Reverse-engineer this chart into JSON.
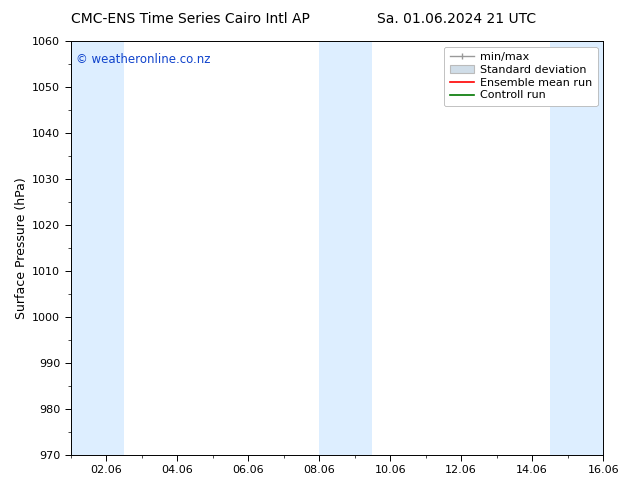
{
  "title": "CMC-ENS Time Series Cairo Intl AP",
  "title_date": "Sa. 01.06.2024 21 UTC",
  "ylabel": "Surface Pressure (hPa)",
  "ylim": [
    970,
    1060
  ],
  "yticks": [
    970,
    980,
    990,
    1000,
    1010,
    1020,
    1030,
    1040,
    1050,
    1060
  ],
  "xlim_days": [
    1.0,
    16.0
  ],
  "xtick_labels": [
    "02.06",
    "04.06",
    "06.06",
    "08.06",
    "10.06",
    "12.06",
    "14.06",
    "16.06"
  ],
  "xtick_positions": [
    2,
    4,
    6,
    8,
    10,
    12,
    14,
    16
  ],
  "shade_bands": [
    {
      "xmin": 1.0,
      "xmax": 2.5
    },
    {
      "xmin": 8.0,
      "xmax": 9.5
    },
    {
      "xmin": 14.5,
      "xmax": 16.5
    }
  ],
  "shade_color": "#ddeeff",
  "background_color": "#ffffff",
  "watermark": "© weatheronline.co.nz",
  "watermark_color": "#1144cc",
  "legend_entries": [
    "min/max",
    "Standard deviation",
    "Ensemble mean run",
    "Controll run"
  ],
  "legend_colors": [
    "#999999",
    "#bbbbbb",
    "#ff0000",
    "#007700"
  ],
  "title_fontsize": 10,
  "tick_fontsize": 8,
  "ylabel_fontsize": 9,
  "legend_fontsize": 8
}
